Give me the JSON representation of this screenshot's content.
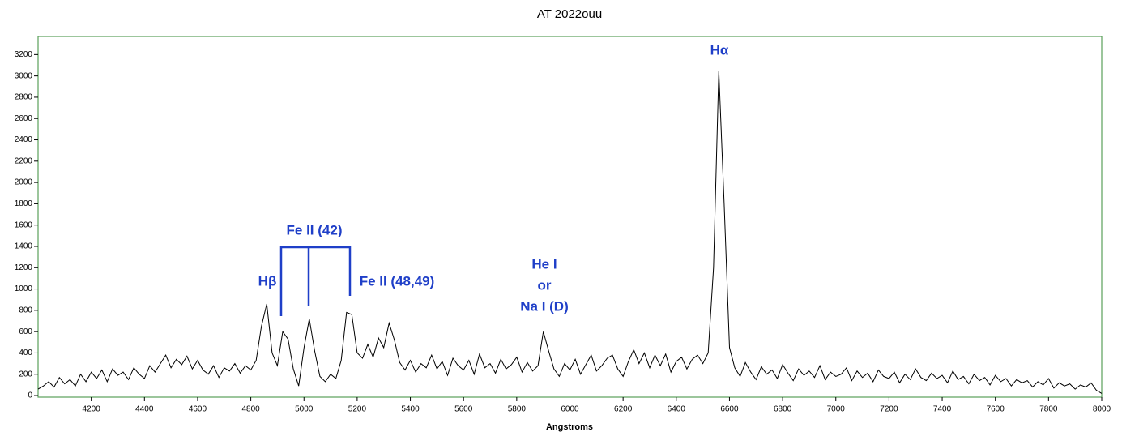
{
  "chart_data": {
    "type": "line",
    "title": "AT 2022ouu",
    "x_label": "Angstroms",
    "color": "#000000",
    "frame_color": "#5aa05a",
    "annotation_color": "#1f3fc8",
    "xlim": [
      4000,
      8000
    ],
    "ylim": [
      -15,
      3370
    ],
    "xticks": [
      4200,
      4400,
      4600,
      4800,
      5000,
      5200,
      5400,
      5600,
      5800,
      6000,
      6200,
      6400,
      6600,
      6800,
      7000,
      7200,
      7400,
      7600,
      7800,
      8000
    ],
    "yticks": [
      0,
      200,
      400,
      600,
      800,
      1000,
      1200,
      1400,
      1600,
      1800,
      2000,
      2200,
      2400,
      2600,
      2800,
      3000,
      3200
    ],
    "annotations": [
      "Hβ",
      "Fe II (42)",
      "Fe II (48,49)",
      "He I",
      "or",
      "Na I (D)",
      "Hα"
    ],
    "x": [
      4000,
      4020,
      4040,
      4060,
      4080,
      4100,
      4120,
      4140,
      4160,
      4180,
      4200,
      4220,
      4240,
      4260,
      4280,
      4300,
      4320,
      4340,
      4360,
      4380,
      4400,
      4420,
      4440,
      4460,
      4480,
      4500,
      4520,
      4540,
      4560,
      4580,
      4600,
      4620,
      4640,
      4660,
      4680,
      4700,
      4720,
      4740,
      4760,
      4780,
      4800,
      4820,
      4840,
      4860,
      4880,
      4900,
      4920,
      4940,
      4960,
      4980,
      5000,
      5020,
      5040,
      5060,
      5080,
      5100,
      5120,
      5140,
      5160,
      5180,
      5200,
      5220,
      5240,
      5260,
      5280,
      5300,
      5320,
      5340,
      5360,
      5380,
      5400,
      5420,
      5440,
      5460,
      5480,
      5500,
      5520,
      5540,
      5560,
      5580,
      5600,
      5620,
      5640,
      5660,
      5680,
      5700,
      5720,
      5740,
      5760,
      5780,
      5800,
      5820,
      5840,
      5860,
      5880,
      5900,
      5920,
      5940,
      5960,
      5980,
      6000,
      6020,
      6040,
      6060,
      6080,
      6100,
      6120,
      6140,
      6160,
      6180,
      6200,
      6220,
      6240,
      6260,
      6280,
      6300,
      6320,
      6340,
      6360,
      6380,
      6400,
      6420,
      6440,
      6460,
      6480,
      6500,
      6520,
      6540,
      6560,
      6580,
      6600,
      6620,
      6640,
      6660,
      6680,
      6700,
      6720,
      6740,
      6760,
      6780,
      6800,
      6820,
      6840,
      6860,
      6880,
      6900,
      6920,
      6940,
      6960,
      6980,
      7000,
      7020,
      7040,
      7060,
      7080,
      7100,
      7120,
      7140,
      7160,
      7180,
      7200,
      7220,
      7240,
      7260,
      7280,
      7300,
      7320,
      7340,
      7360,
      7380,
      7400,
      7420,
      7440,
      7460,
      7480,
      7500,
      7520,
      7540,
      7560,
      7580,
      7600,
      7620,
      7640,
      7660,
      7680,
      7700,
      7720,
      7740,
      7760,
      7780,
      7800,
      7820,
      7840,
      7860,
      7880,
      7900,
      7920,
      7940,
      7960,
      7980,
      8000
    ],
    "values": [
      60,
      90,
      130,
      80,
      170,
      110,
      150,
      90,
      200,
      130,
      220,
      160,
      240,
      130,
      250,
      190,
      220,
      150,
      260,
      200,
      160,
      280,
      220,
      300,
      380,
      260,
      340,
      290,
      370,
      250,
      330,
      240,
      200,
      280,
      170,
      260,
      230,
      300,
      210,
      280,
      240,
      330,
      650,
      860,
      400,
      280,
      600,
      530,
      250,
      90,
      450,
      720,
      420,
      180,
      130,
      200,
      160,
      330,
      780,
      760,
      400,
      350,
      480,
      360,
      540,
      450,
      680,
      520,
      310,
      240,
      330,
      220,
      300,
      260,
      380,
      250,
      320,
      190,
      350,
      280,
      240,
      330,
      200,
      390,
      260,
      300,
      210,
      340,
      250,
      290,
      360,
      220,
      310,
      230,
      280,
      600,
      420,
      250,
      180,
      300,
      240,
      340,
      200,
      290,
      380,
      230,
      280,
      350,
      380,
      250,
      180,
      320,
      430,
      300,
      400,
      260,
      380,
      280,
      390,
      220,
      320,
      360,
      250,
      340,
      380,
      300,
      400,
      1200,
      3050,
      1800,
      450,
      260,
      180,
      310,
      220,
      150,
      270,
      200,
      240,
      160,
      290,
      210,
      140,
      250,
      190,
      230,
      170,
      280,
      150,
      220,
      180,
      200,
      260,
      140,
      230,
      170,
      210,
      130,
      240,
      180,
      160,
      220,
      120,
      200,
      150,
      250,
      170,
      140,
      210,
      160,
      190,
      120,
      230,
      150,
      180,
      110,
      200,
      140,
      170,
      100,
      190,
      130,
      160,
      90,
      150,
      120,
      140,
      80,
      130,
      100,
      160,
      70,
      120,
      90,
      110,
      60,
      100,
      80,
      120,
      50,
      20
    ]
  }
}
